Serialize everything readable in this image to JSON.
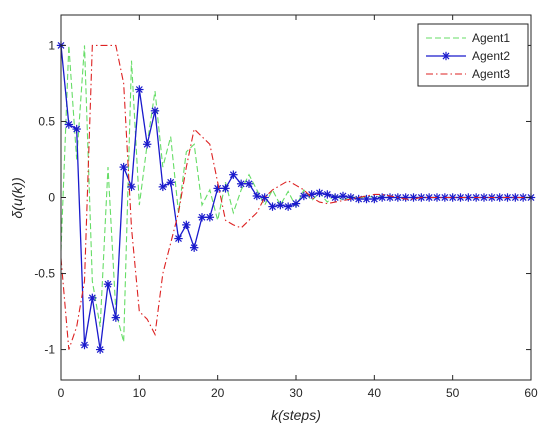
{
  "chart_data": {
    "type": "line",
    "xlabel": "k(steps)",
    "ylabel": "δ(u(k))",
    "xlim": [
      0,
      60
    ],
    "ylim": [
      -1.2,
      1.2
    ],
    "xticks": [
      0,
      10,
      20,
      30,
      40,
      50,
      60
    ],
    "yticks": [
      -1,
      -0.5,
      0,
      0.5,
      1
    ],
    "grid": false,
    "legend_position": "top-right",
    "series": [
      {
        "name": "Agent1",
        "color": "#66dd66",
        "line_style": "dashed",
        "marker": "none",
        "x": [
          0,
          1,
          2,
          3,
          4,
          5,
          6,
          7,
          8,
          9,
          10,
          11,
          12,
          13,
          14,
          15,
          16,
          17,
          18,
          19,
          20,
          21,
          22,
          23,
          24,
          25,
          26,
          27,
          28,
          29,
          30,
          31,
          32,
          33,
          34,
          35,
          36,
          37,
          38,
          39,
          40,
          41,
          42,
          43,
          44,
          45,
          46,
          47,
          48,
          49,
          50,
          51,
          52,
          53,
          54,
          55,
          56,
          57,
          58,
          59,
          60
        ],
        "values": [
          -0.35,
          1.0,
          0.25,
          1.0,
          -0.55,
          -0.85,
          0.2,
          -0.75,
          -0.95,
          0.9,
          -0.05,
          0.35,
          0.7,
          0.2,
          0.4,
          -0.1,
          0.3,
          0.35,
          -0.05,
          0.05,
          -0.15,
          0.1,
          -0.1,
          0.05,
          0.15,
          0.05,
          -0.05,
          0.05,
          -0.05,
          0.04,
          -0.06,
          0.05,
          -0.02,
          0.03,
          -0.03,
          0.02,
          -0.02,
          0.01,
          -0.01,
          0.01,
          0.0,
          0.01,
          0.0,
          0.0,
          0.0,
          0.0,
          0.0,
          0.0,
          0.0,
          0.0,
          0.0,
          0.0,
          0.0,
          0.0,
          0.0,
          0.0,
          0.0,
          0.0,
          0.0,
          0.0,
          0.0
        ]
      },
      {
        "name": "Agent2",
        "color": "#1a1acc",
        "line_style": "solid",
        "marker": "asterisk",
        "x": [
          0,
          1,
          2,
          3,
          4,
          5,
          6,
          7,
          8,
          9,
          10,
          11,
          12,
          13,
          14,
          15,
          16,
          17,
          18,
          19,
          20,
          21,
          22,
          23,
          24,
          25,
          26,
          27,
          28,
          29,
          30,
          31,
          32,
          33,
          34,
          35,
          36,
          37,
          38,
          39,
          40,
          41,
          42,
          43,
          44,
          45,
          46,
          47,
          48,
          49,
          50,
          51,
          52,
          53,
          54,
          55,
          56,
          57,
          58,
          59,
          60
        ],
        "values": [
          1.0,
          0.48,
          0.45,
          -0.97,
          -0.66,
          -1.0,
          -0.57,
          -0.79,
          0.2,
          0.07,
          0.71,
          0.35,
          0.57,
          0.07,
          0.1,
          -0.27,
          -0.18,
          -0.33,
          -0.13,
          -0.13,
          0.06,
          0.06,
          0.15,
          0.09,
          0.09,
          0.01,
          0.0,
          -0.06,
          -0.05,
          -0.06,
          -0.04,
          0.01,
          0.02,
          0.03,
          0.02,
          0.0,
          0.01,
          0.0,
          -0.01,
          -0.01,
          -0.01,
          0.0,
          0.0,
          0.0,
          0.0,
          0.0,
          0.0,
          0.0,
          0.0,
          0.0,
          0.0,
          0.0,
          0.0,
          0.0,
          0.0,
          0.0,
          0.0,
          0.0,
          0.0,
          0.0,
          0.0
        ]
      },
      {
        "name": "Agent3",
        "color": "#dd2222",
        "line_style": "dashdot",
        "marker": "none",
        "x": [
          0,
          1,
          2,
          3,
          4,
          5,
          6,
          7,
          8,
          9,
          10,
          11,
          12,
          13,
          14,
          15,
          16,
          17,
          18,
          19,
          20,
          21,
          22,
          23,
          24,
          25,
          26,
          27,
          28,
          29,
          30,
          31,
          32,
          33,
          34,
          35,
          36,
          37,
          38,
          39,
          40,
          41,
          42,
          43,
          44,
          45,
          46,
          47,
          48,
          49,
          50,
          51,
          52,
          53,
          54,
          55,
          56,
          57,
          58,
          59,
          60
        ],
        "values": [
          -0.4,
          -1.0,
          -0.85,
          -0.55,
          1.0,
          1.0,
          1.0,
          1.0,
          0.75,
          -0.2,
          -0.75,
          -0.8,
          -0.9,
          -0.5,
          -0.3,
          -0.1,
          0.2,
          0.45,
          0.4,
          0.35,
          0.1,
          -0.15,
          -0.18,
          -0.2,
          -0.15,
          -0.1,
          0.0,
          0.05,
          0.08,
          0.11,
          0.08,
          0.05,
          0.0,
          -0.03,
          -0.04,
          -0.03,
          -0.02,
          -0.01,
          0.0,
          0.01,
          0.02,
          0.02,
          0.01,
          0.0,
          -0.01,
          -0.01,
          0.0,
          0.0,
          0.0,
          0.0,
          0.0,
          0.0,
          0.0,
          0.0,
          0.0,
          0.0,
          0.0,
          0.0,
          0.0,
          0.0,
          0.0
        ]
      }
    ]
  }
}
